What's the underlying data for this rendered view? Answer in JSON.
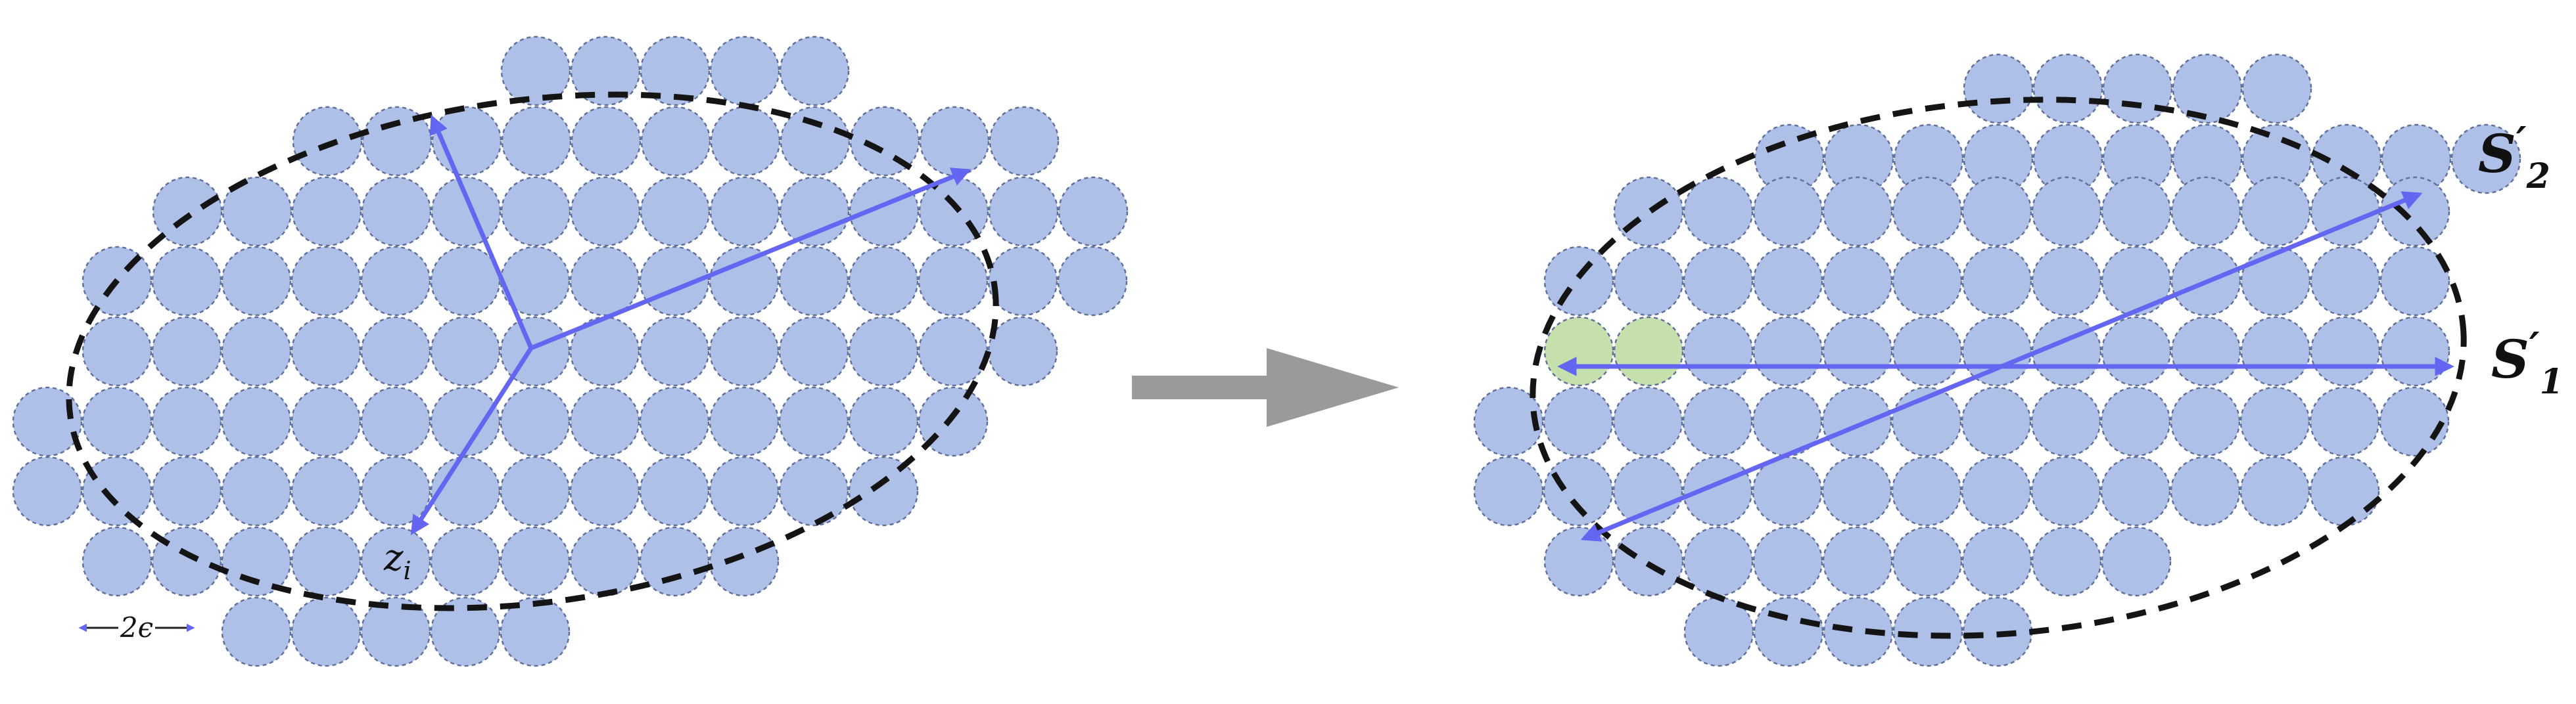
{
  "left_panel": {
    "vertex_label": "z",
    "vertex_label_sub": "i",
    "scale_label": "2ϵ"
  },
  "right_panel": {
    "label_top_main": "S",
    "label_top_prime": "′",
    "label_top_sub": "2",
    "label_mid_main": "S",
    "label_mid_prime": "′",
    "label_mid_sub": "1"
  },
  "colors": {
    "ball_fill": "#aec0e8",
    "ball_highlight": "#c5e0ac",
    "vector": "#6466f1",
    "transition_arrow": "#9a9a9a",
    "boundary": "#141414"
  }
}
